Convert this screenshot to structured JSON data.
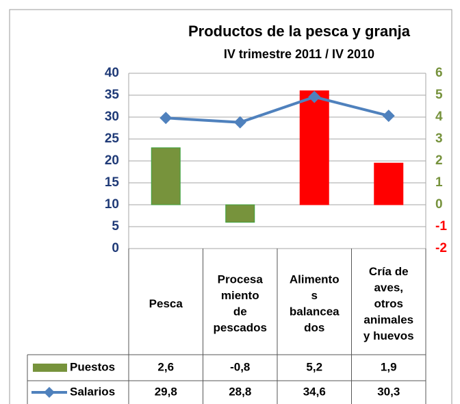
{
  "chart_data": {
    "type": "bar",
    "title": "Productos de la pesca y granja",
    "subtitle": "IV trimestre 2011  / IV 2010",
    "categories": [
      [
        "Pesca"
      ],
      [
        "Procesa",
        "miento",
        "de",
        "pescados"
      ],
      [
        "Alimento",
        "s",
        "balancea",
        "dos"
      ],
      [
        "Cría de",
        "aves,",
        "otros",
        "animales",
        "y huevos"
      ]
    ],
    "series": [
      {
        "name": "Puestos",
        "type": "bar",
        "axis": "y2",
        "color": "#77933c",
        "colors": [
          "#77933c",
          "#77933c",
          "#ff0000",
          "#ff0000"
        ],
        "values": [
          2.6,
          -0.8,
          5.2,
          1.9
        ],
        "value_labels": [
          "2,6",
          "-0,8",
          "5,2",
          "1,9"
        ]
      },
      {
        "name": "Salarios",
        "type": "line",
        "axis": "y",
        "color": "#4f81bd",
        "values": [
          29.8,
          28.8,
          34.6,
          30.3
        ],
        "value_labels": [
          "29,8",
          "28,8",
          "34,6",
          "30,3"
        ]
      }
    ],
    "ylim": [
      0,
      40
    ],
    "yticks": [
      0,
      5,
      10,
      15,
      20,
      25,
      30,
      35,
      40
    ],
    "ytick_color": "#1f3a77",
    "y2lim": [
      -2,
      6
    ],
    "y2ticks": [
      -2,
      -1,
      0,
      1,
      2,
      3,
      4,
      5,
      6
    ],
    "y2tick_colors": {
      "positive": "#76923c",
      "negative": "#ff0000"
    },
    "grid": true
  }
}
